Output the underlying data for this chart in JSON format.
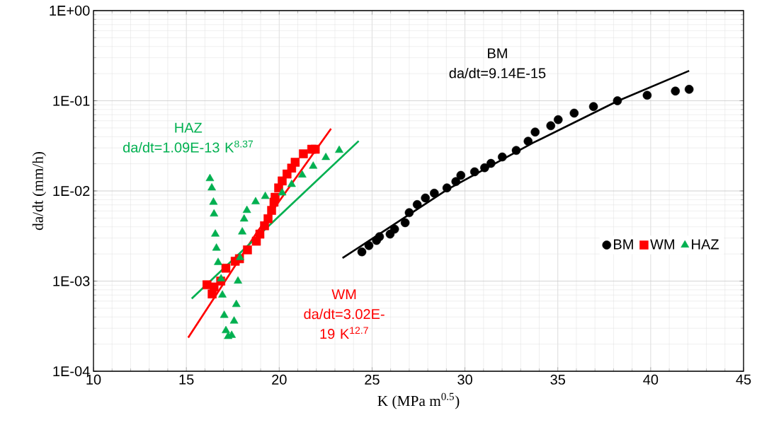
{
  "chart_data": {
    "type": "scatter",
    "xlabel": "K  (MPa m$^{0.5}$)",
    "ylabel": "da/dt  (mm/h)",
    "xlim": [
      10,
      45
    ],
    "xticks": [
      10,
      15,
      20,
      25,
      30,
      35,
      40,
      45
    ],
    "ylim": [
      0.0001,
      1
    ],
    "yticks": [
      {
        "value": 0.0001,
        "label": "1E-04"
      },
      {
        "value": 0.001,
        "label": "1E-03"
      },
      {
        "value": 0.01,
        "label": "1E-02"
      },
      {
        "value": 0.1,
        "label": "1E-01"
      },
      {
        "value": 1,
        "label": "1E+00"
      }
    ],
    "log": "y",
    "grid": true,
    "legend": "right",
    "series": [
      {
        "name": "BM",
        "color": "#000000",
        "marker": "circle",
        "x": [
          24.45,
          24.83,
          25.24,
          25.4,
          25.97,
          26.21,
          26.78,
          27.0,
          27.43,
          27.87,
          28.35,
          29.03,
          29.51,
          29.78,
          30.52,
          31.06,
          31.4,
          32.01,
          32.76,
          33.4,
          33.78,
          34.62,
          35.02,
          35.88,
          36.92,
          38.21,
          39.81,
          41.33,
          42.07
        ],
        "values": [
          0.00211,
          0.00248,
          0.00282,
          0.00311,
          0.00332,
          0.00377,
          0.00444,
          0.00574,
          0.00706,
          0.00835,
          0.00944,
          0.0108,
          0.0127,
          0.0149,
          0.0163,
          0.0181,
          0.0202,
          0.0238,
          0.0281,
          0.0356,
          0.045,
          0.0528,
          0.0617,
          0.073,
          0.0863,
          0.1,
          0.115,
          0.128,
          0.134
        ]
      },
      {
        "name": "WM",
        "color": "#ff0000",
        "marker": "square",
        "x": [
          16.11,
          16.39,
          16.49,
          16.85,
          17.13,
          17.63,
          17.86,
          18.29,
          18.77,
          18.96,
          19.21,
          19.4,
          19.59,
          19.72,
          19.78,
          19.97,
          20.16,
          20.42,
          20.67,
          20.86,
          21.3,
          21.75,
          21.94
        ],
        "values": [
          0.00091,
          0.00072,
          0.00086,
          0.001,
          0.00139,
          0.00166,
          0.00177,
          0.00222,
          0.00277,
          0.00332,
          0.00411,
          0.00492,
          0.00608,
          0.0075,
          0.0085,
          0.0108,
          0.0129,
          0.0154,
          0.0179,
          0.0208,
          0.0258,
          0.029,
          0.029
        ]
      },
      {
        "name": "HAZ",
        "color": "#00b050",
        "marker": "triangle",
        "x": [
          16.27,
          16.37,
          16.46,
          16.49,
          16.56,
          16.62,
          16.71,
          16.87,
          16.94,
          17.04,
          17.13,
          17.25,
          17.44,
          17.57,
          17.69,
          17.78,
          17.89,
          18.01,
          18.11,
          18.26,
          18.73,
          19.25,
          20.16,
          20.67,
          21.24,
          21.83,
          22.51,
          23.23
        ],
        "values": [
          0.0137,
          0.0108,
          0.0075,
          0.00555,
          0.00332,
          0.00232,
          0.00161,
          0.00106,
          0.0007,
          0.000417,
          0.000282,
          0.000243,
          0.00025,
          0.00036,
          0.00055,
          0.001,
          0.00182,
          0.00351,
          0.00488,
          0.00608,
          0.00759,
          0.0087,
          0.0095,
          0.0118,
          0.015,
          0.0188,
          0.0235,
          0.0282
        ]
      },
      {
        "type": "line",
        "color": "#000000",
        "marker": "none",
        "x": [
          23.41,
          29.06,
          33.67,
          38.21,
          42.07
        ],
        "values": [
          0.0018,
          0.0104,
          0.0342,
          0.099,
          0.215
        ]
      },
      {
        "type": "line",
        "color": "#ff0000",
        "marker": "none",
        "x": [
          15.1,
          18.77,
          22.79
        ],
        "values": [
          0.000236,
          0.0034,
          0.049
        ]
      },
      {
        "type": "line",
        "color": "#00b050",
        "marker": "none",
        "x": [
          15.29,
          24.28
        ],
        "values": [
          0.00064,
          0.0358
        ]
      }
    ],
    "annotations": [
      "BM",
      "da/dt=9.14E-15",
      "WM",
      "da/dt=3.02E-19 K$^{12.7}$",
      "HAZ",
      "da/dt=1.09E-13 K$^{8.37}$"
    ]
  }
}
